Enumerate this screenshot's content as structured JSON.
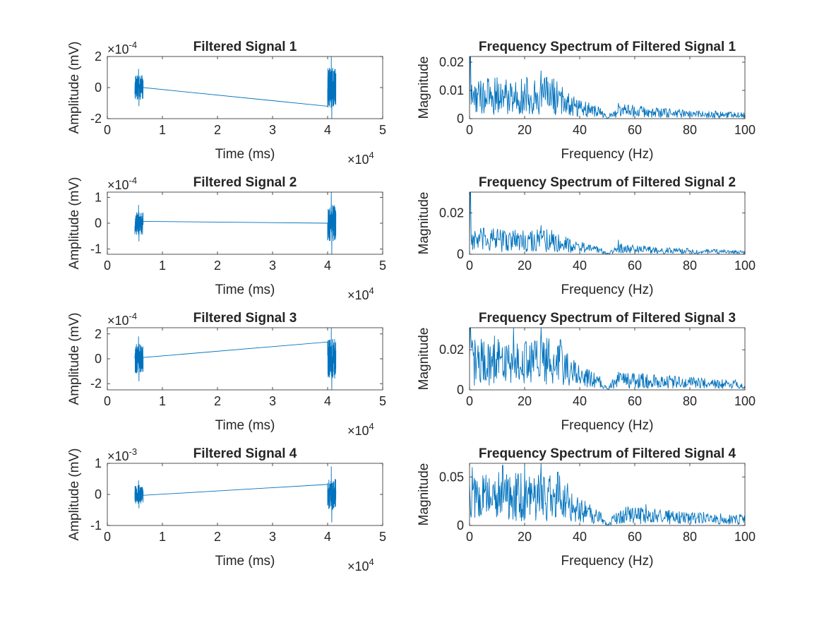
{
  "colors": {
    "line": "#0072BD",
    "axis": "#262626",
    "background": "#ffffff"
  },
  "chart_data": [
    {
      "type": "line",
      "title": "Filtered Signal 1",
      "xlabel": "Time (ms)",
      "ylabel": "Amplitude (mV)",
      "xlim": [
        0,
        5
      ],
      "ylim": [
        -2,
        2
      ],
      "xticks": [
        0,
        1,
        2,
        3,
        4,
        5
      ],
      "yticks": [
        -2,
        0,
        2
      ],
      "x_exponent": "10",
      "x_exponent_power": "4",
      "y_exponent": "10",
      "y_exponent_power": "-4",
      "series": [
        {
          "bursts": [
            {
              "x_start": 0.5,
              "x_end": 0.65,
              "center": 0,
              "amp": 0.8,
              "peak": 1.2
            },
            {
              "x_start": 4.0,
              "x_end": 4.15,
              "center": 0,
              "amp": 1.3,
              "peak": 2.0
            }
          ],
          "connector": [
            [
              0.65,
              0.0
            ],
            [
              4.0,
              -1.2
            ]
          ]
        }
      ]
    },
    {
      "type": "line",
      "title": "Frequency Spectrum of Filtered Signal 1",
      "xlabel": "Frequency (Hz)",
      "ylabel": "Magnitude",
      "xlim": [
        0,
        100
      ],
      "ylim": [
        0,
        0.022
      ],
      "xticks": [
        0,
        20,
        40,
        60,
        80,
        100
      ],
      "yticks": [
        0,
        0.01,
        0.02
      ],
      "ytick_labels": [
        "0",
        "0.01",
        "0.02"
      ],
      "series": [
        {
          "profile": [
            [
              0,
              0.008
            ],
            [
              30,
              0.008
            ],
            [
              40,
              0.004
            ],
            [
              48,
              0.002
            ],
            [
              50,
              0.0002
            ],
            [
              52,
              0.0018
            ],
            [
              55,
              0.003
            ],
            [
              70,
              0.002
            ],
            [
              100,
              0.0012
            ]
          ],
          "peaks": [
            [
              0.3,
              0.022
            ],
            [
              26,
              0.017
            ],
            [
              30,
              0.014
            ],
            [
              54,
              0.0055
            ]
          ]
        }
      ]
    },
    {
      "type": "line",
      "title": "Filtered Signal 2",
      "xlabel": "Time (ms)",
      "ylabel": "Amplitude (mV)",
      "xlim": [
        0,
        5
      ],
      "ylim": [
        -1.2,
        1.2
      ],
      "xticks": [
        0,
        1,
        2,
        3,
        4,
        5
      ],
      "yticks": [
        -1,
        0,
        1
      ],
      "x_exponent": "10",
      "x_exponent_power": "4",
      "y_exponent": "10",
      "y_exponent_power": "-4",
      "series": [
        {
          "bursts": [
            {
              "x_start": 0.5,
              "x_end": 0.65,
              "center": 0,
              "amp": 0.45,
              "peak": 0.7
            },
            {
              "x_start": 4.0,
              "x_end": 4.15,
              "center": 0,
              "amp": 0.7,
              "peak": 1.2
            }
          ],
          "connector": [
            [
              0.65,
              0.07
            ],
            [
              4.0,
              0.0
            ]
          ]
        }
      ]
    },
    {
      "type": "line",
      "title": "Frequency Spectrum of Filtered Signal 2",
      "xlabel": "Frequency (Hz)",
      "ylabel": "Magnitude",
      "xlim": [
        0,
        100
      ],
      "ylim": [
        0,
        0.03
      ],
      "xticks": [
        0,
        20,
        40,
        60,
        80,
        100
      ],
      "yticks": [
        0,
        0.02
      ],
      "ytick_labels": [
        "0",
        "0.02"
      ],
      "series": [
        {
          "profile": [
            [
              0,
              0.007
            ],
            [
              30,
              0.0065
            ],
            [
              40,
              0.0035
            ],
            [
              48,
              0.0018
            ],
            [
              50,
              0.0002
            ],
            [
              52,
              0.0015
            ],
            [
              55,
              0.0028
            ],
            [
              70,
              0.0018
            ],
            [
              100,
              0.001
            ]
          ],
          "peaks": [
            [
              0.3,
              0.03
            ],
            [
              26,
              0.014
            ],
            [
              54,
              0.007
            ]
          ]
        }
      ]
    },
    {
      "type": "line",
      "title": "Filtered Signal 3",
      "xlabel": "Time (ms)",
      "ylabel": "Amplitude (mV)",
      "xlim": [
        0,
        5
      ],
      "ylim": [
        -2.5,
        2.5
      ],
      "xticks": [
        0,
        1,
        2,
        3,
        4,
        5
      ],
      "yticks": [
        -2,
        0,
        2
      ],
      "x_exponent": "10",
      "x_exponent_power": "4",
      "y_exponent": "10",
      "y_exponent_power": "-4",
      "series": [
        {
          "bursts": [
            {
              "x_start": 0.5,
              "x_end": 0.65,
              "center": 0,
              "amp": 1.2,
              "peak": 1.8
            },
            {
              "x_start": 4.0,
              "x_end": 4.15,
              "center": 0,
              "amp": 1.6,
              "peak": 2.5
            }
          ],
          "connector": [
            [
              0.65,
              0.1
            ],
            [
              4.0,
              1.35
            ]
          ]
        }
      ]
    },
    {
      "type": "line",
      "title": "Frequency Spectrum of Filtered Signal 3",
      "xlabel": "Frequency (Hz)",
      "ylabel": "Magnitude",
      "xlim": [
        0,
        100
      ],
      "ylim": [
        0,
        0.031
      ],
      "xticks": [
        0,
        20,
        40,
        60,
        80,
        100
      ],
      "yticks": [
        0,
        0.02
      ],
      "ytick_labels": [
        "0",
        "0.02"
      ],
      "series": [
        {
          "profile": [
            [
              0,
              0.014
            ],
            [
              32,
              0.014
            ],
            [
              40,
              0.007
            ],
            [
              48,
              0.0035
            ],
            [
              50,
              0.0003
            ],
            [
              52,
              0.003
            ],
            [
              55,
              0.005
            ],
            [
              70,
              0.004
            ],
            [
              100,
              0.0025
            ]
          ],
          "peaks": [
            [
              0.3,
              0.031
            ],
            [
              9,
              0.027
            ],
            [
              16,
              0.031
            ],
            [
              26,
              0.031
            ],
            [
              33,
              0.025
            ],
            [
              54,
              0.009
            ]
          ]
        }
      ]
    },
    {
      "type": "line",
      "title": "Filtered Signal 4",
      "xlabel": "Time (ms)",
      "ylabel": "Amplitude (mV)",
      "xlim": [
        0,
        5
      ],
      "ylim": [
        -1,
        1
      ],
      "xticks": [
        0,
        1,
        2,
        3,
        4,
        5
      ],
      "yticks": [
        -1,
        0,
        1
      ],
      "x_exponent": "10",
      "x_exponent_power": "4",
      "y_exponent": "10",
      "y_exponent_power": "-3",
      "series": [
        {
          "bursts": [
            {
              "x_start": 0.5,
              "x_end": 0.65,
              "center": 0,
              "amp": 0.3,
              "peak": 0.45
            },
            {
              "x_start": 4.0,
              "x_end": 4.15,
              "center": 0,
              "amp": 0.5,
              "peak": 0.9
            }
          ],
          "connector": [
            [
              0.65,
              -0.03
            ],
            [
              4.0,
              0.32
            ]
          ]
        }
      ]
    },
    {
      "type": "line",
      "title": "Frequency Spectrum of Filtered Signal 4",
      "xlabel": "Frequency (Hz)",
      "ylabel": "Magnitude",
      "xlim": [
        0,
        100
      ],
      "ylim": [
        0,
        0.064
      ],
      "xticks": [
        0,
        20,
        40,
        60,
        80,
        100
      ],
      "yticks": [
        0,
        0.05
      ],
      "ytick_labels": [
        "0",
        "0.05"
      ],
      "series": [
        {
          "profile": [
            [
              0,
              0.03
            ],
            [
              32,
              0.03
            ],
            [
              40,
              0.016
            ],
            [
              48,
              0.008
            ],
            [
              50,
              0.0005
            ],
            [
              52,
              0.006
            ],
            [
              55,
              0.011
            ],
            [
              70,
              0.009
            ],
            [
              100,
              0.006
            ]
          ],
          "peaks": [
            [
              1,
              0.06
            ],
            [
              12,
              0.062
            ],
            [
              20,
              0.062
            ],
            [
              26,
              0.064
            ],
            [
              32,
              0.055
            ],
            [
              64,
              0.022
            ]
          ]
        }
      ]
    }
  ]
}
